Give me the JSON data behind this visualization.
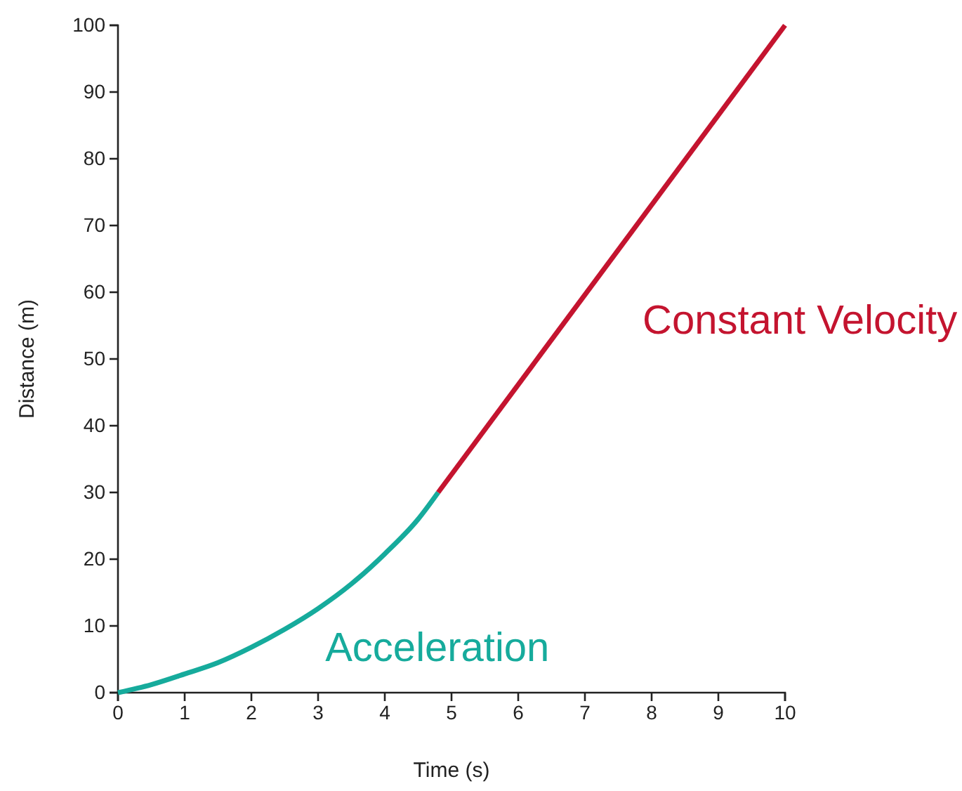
{
  "chart_data": {
    "type": "line",
    "xlabel": "Time (s)",
    "ylabel": "Distance (m)",
    "xlim": [
      0,
      10
    ],
    "ylim": [
      0,
      100
    ],
    "xticks": [
      0,
      1,
      2,
      3,
      4,
      5,
      6,
      7,
      8,
      9,
      10
    ],
    "yticks": [
      0,
      10,
      20,
      30,
      40,
      50,
      60,
      70,
      80,
      90,
      100
    ],
    "grid": false,
    "legend": false,
    "marker": "none",
    "line_style": "solid",
    "series": [
      {
        "name": "Acceleration",
        "color": "#16ab9c",
        "x": [
          0,
          0.5,
          1,
          1.5,
          2,
          2.5,
          3,
          3.5,
          4,
          4.5,
          4.8
        ],
        "values": [
          0,
          1.2,
          2.8,
          4.5,
          6.8,
          9.5,
          12.6,
          16.3,
          20.8,
          26,
          30
        ]
      },
      {
        "name": "Constant Velocity",
        "color": "#c4142f",
        "x": [
          4.8,
          10
        ],
        "values": [
          30,
          100
        ]
      }
    ]
  }
}
